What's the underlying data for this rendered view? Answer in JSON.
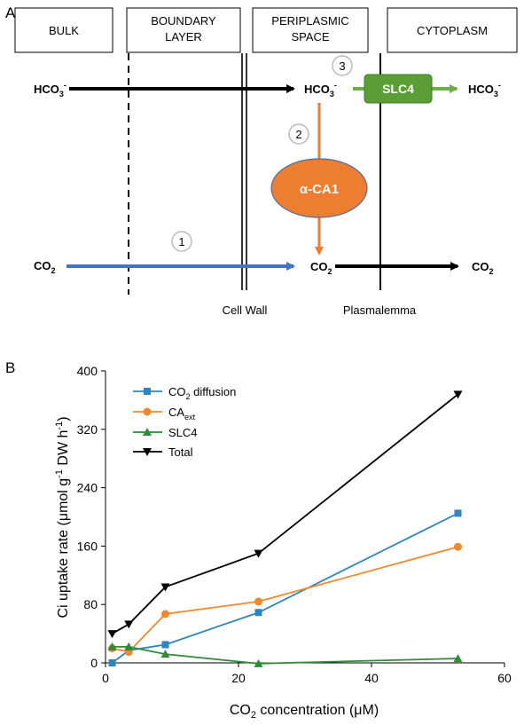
{
  "panel_a": {
    "panel_letter": "A",
    "regions": {
      "bulk": "BULK",
      "boundary_1": "BOUNDARY",
      "boundary_2": "LAYER",
      "periplasm_1": "PERIPLASMIC",
      "periplasm_2": "SPACE",
      "cytoplasm": "CYTOPLASM"
    },
    "species": {
      "hco3_base": "HCO",
      "hco3_sub": "3",
      "hco3_sup": "-",
      "co2_base": "CO",
      "co2_sub": "2"
    },
    "steps": {
      "one": "1",
      "two": "2",
      "three": "3"
    },
    "enzymes": {
      "ca": "α-CA1",
      "slc": "SLC4"
    },
    "membranes": {
      "cell_wall": "Cell Wall",
      "plasmalemma": "Plasmalemma"
    },
    "colors": {
      "co2_arrow": "#4472c4",
      "ca_arrow": "#ed7d31",
      "slc_green": "#70ad47",
      "slc_box": "#5a9e35",
      "ca_ellipse": "#ed7d31",
      "black": "#000000"
    }
  },
  "panel_b": {
    "panel_letter": "B",
    "ylabel_1": "Ci uptake rate (μmol g",
    "ylabel_sup1": "-1",
    "ylabel_2": " DW h",
    "ylabel_sup2": "-1",
    "ylabel_3": ")",
    "xlabel_1": "CO",
    "xlabel_sub": "2",
    "xlabel_2": " concentration (μM)",
    "legend": {
      "co2_base": "CO",
      "co2_sub": "2",
      "co2_rest": " diffusion",
      "ca_base": "CA",
      "ca_sub": "ext",
      "slc": "SLC4",
      "total": "Total"
    }
  },
  "chart_data": {
    "type": "line",
    "x": [
      1,
      3.5,
      9,
      23,
      53
    ],
    "xlim": [
      0,
      60
    ],
    "ylim": [
      0,
      400
    ],
    "xticks": [
      0,
      20,
      40,
      60
    ],
    "yticks": [
      0,
      80,
      160,
      240,
      320,
      400
    ],
    "xtick_labels": [
      "0",
      "20",
      "40",
      "60"
    ],
    "ytick_labels": [
      "0",
      "80",
      "160",
      "240",
      "320",
      "400"
    ],
    "legend_position": "top-left",
    "grid": false,
    "series": [
      {
        "name": "CO2 diffusion",
        "color": "#2e86c1",
        "marker": "square",
        "values": [
          0,
          17,
          25,
          69,
          205
        ]
      },
      {
        "name": "CAext",
        "color": "#f0892b",
        "marker": "circle",
        "values": [
          20,
          15,
          67,
          84,
          159
        ]
      },
      {
        "name": "SLC4",
        "color": "#2e8b3a",
        "marker": "triangle-up",
        "values": [
          22,
          22,
          12,
          -1,
          6
        ]
      },
      {
        "name": "Total",
        "color": "#000000",
        "marker": "triangle-down",
        "values": [
          40,
          53,
          104,
          150,
          368
        ]
      }
    ]
  }
}
